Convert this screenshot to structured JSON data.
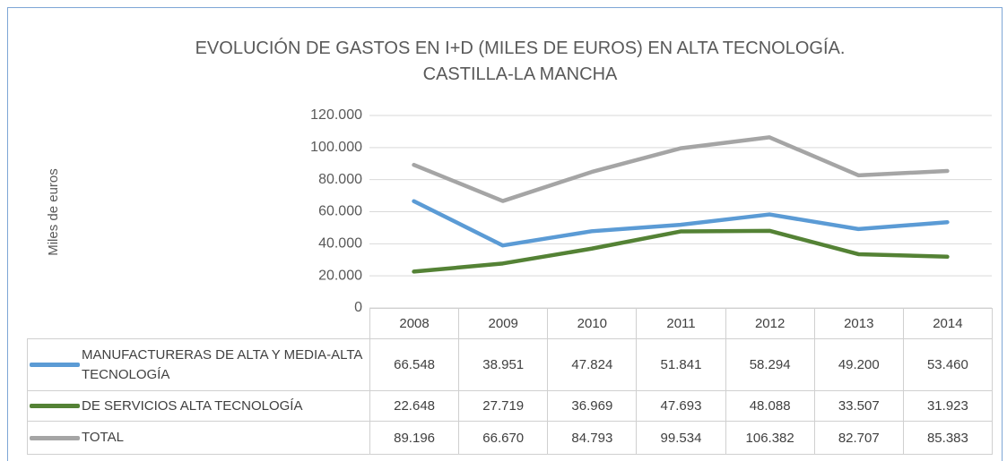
{
  "chart_data": {
    "type": "line",
    "title": "EVOLUCIÓN DE GASTOS EN I+D (MILES DE EUROS) EN ALTA TECNOLOGÍA. CASTILLA-LA MANCHA",
    "y_label": "Miles de euros",
    "categories": [
      "2008",
      "2009",
      "2010",
      "2011",
      "2012",
      "2013",
      "2014"
    ],
    "series": [
      {
        "name": "MANUFACTURERAS DE ALTA Y MEDIA-ALTA TECNOLOGÍA",
        "color": "#5b9bd5",
        "values": [
          66548,
          38951,
          47824,
          51841,
          58294,
          49200,
          53460
        ],
        "value_labels": [
          "66.548",
          "38.951",
          "47.824",
          "51.841",
          "58.294",
          "49.200",
          "53.460"
        ]
      },
      {
        "name": "DE SERVICIOS ALTA TECNOLOGÍA",
        "color": "#548235",
        "values": [
          22648,
          27719,
          36969,
          47693,
          48088,
          33507,
          31923
        ],
        "value_labels": [
          "22.648",
          "27.719",
          "36.969",
          "47.693",
          "48.088",
          "33.507",
          "31.923"
        ]
      },
      {
        "name": "TOTAL",
        "color": "#a5a5a5",
        "values": [
          89196,
          66670,
          84793,
          99534,
          106382,
          82707,
          85383
        ],
        "value_labels": [
          "89.196",
          "66.670",
          "84.793",
          "99.534",
          "106.382",
          "82.707",
          "85.383"
        ]
      }
    ],
    "ylim": [
      0,
      120000
    ],
    "yticks": [
      0,
      {
        "value": 20000,
        "label": "20.000"
      },
      {
        "value": 40000,
        "label": "40.000"
      },
      {
        "value": 60000,
        "label": "60.000"
      },
      {
        "value": 80000,
        "label": "80.000"
      },
      {
        "value": 100000,
        "label": "100.000"
      },
      {
        "value": 120000,
        "label": "120.000"
      }
    ],
    "grid": true
  }
}
